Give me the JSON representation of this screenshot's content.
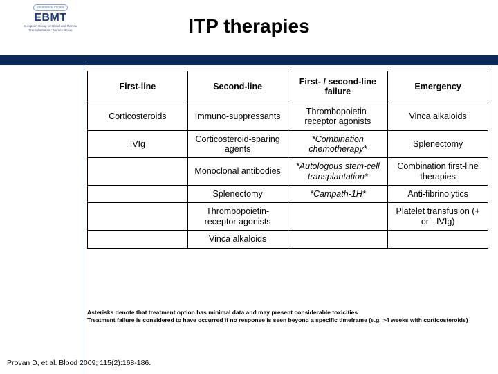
{
  "title": "ITP therapies",
  "logo": {
    "tagline": "excellence in care",
    "name": "EBMT",
    "sub": "European Group for Blood and Marrow Transplantation • Nurses Group"
  },
  "table": {
    "headers": [
      "First-line",
      "Second-line",
      "First- / second-line failure",
      "Emergency"
    ],
    "rows": [
      [
        "Corticosteroids",
        "Immuno-suppressants",
        "Thrombopoietin-receptor agonists",
        "Vinca alkaloids"
      ],
      [
        "IVIg",
        "Corticosteroid-sparing agents",
        "*Combination chemotherapy*",
        "Splenectomy"
      ],
      [
        "",
        "Monoclonal antibodies",
        "*Autologous stem-cell transplantation*",
        "Combination first-line therapies"
      ],
      [
        "",
        "Splenectomy",
        "*Campath-1H*",
        "Anti-fibrinolytics"
      ],
      [
        "",
        "Thrombopoietin-receptor agonists",
        "",
        "Platelet transfusion (+ or - IVIg)"
      ],
      [
        "",
        "Vinca alkaloids",
        "",
        ""
      ]
    ],
    "italic_cells": [
      [
        1,
        2
      ],
      [
        2,
        2
      ],
      [
        3,
        2
      ]
    ]
  },
  "footnote": {
    "line1": "Asterisks denote that treatment option has minimal data and may present considerable toxicities",
    "line2": "Treatment failure is considered to have occurred if no response is seen beyond a specific timeframe (e.g. >4 weeks with corticosteroids)"
  },
  "citation": "Provan D, et al. Blood 2009; 115(2):168-186.",
  "colors": {
    "band": "#0a2a5a",
    "text": "#000000",
    "bg": "#ffffff"
  }
}
